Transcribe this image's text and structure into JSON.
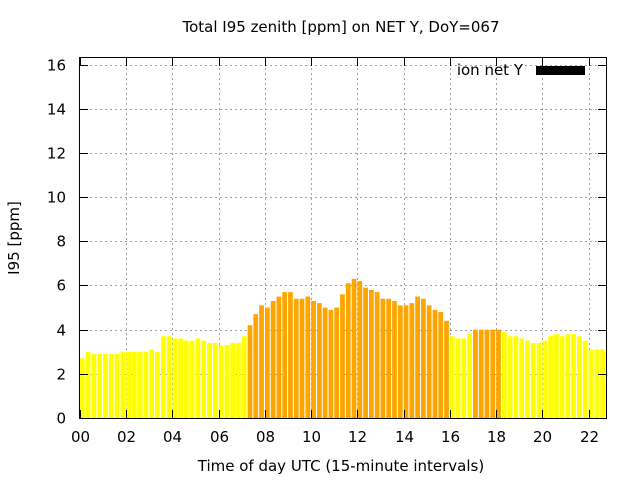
{
  "chart_data": {
    "type": "bar",
    "title": "Total I95 zenith [ppm] on NET Y, DoY=067",
    "xlabel": "Time of day UTC (15-minute intervals)",
    "ylabel": "I95 [ppm]",
    "ylim": [
      0,
      16.3
    ],
    "xlim": [
      0,
      22.75
    ],
    "yticks": [
      0,
      2,
      4,
      6,
      8,
      10,
      12,
      14,
      16
    ],
    "xticks": [
      0,
      2,
      4,
      6,
      8,
      10,
      12,
      14,
      16,
      18,
      20,
      22
    ],
    "xtick_labels": [
      "00",
      "02",
      "04",
      "06",
      "08",
      "10",
      "12",
      "14",
      "16",
      "18",
      "20",
      "22"
    ],
    "grid": true,
    "legend": {
      "label": "ion net Y",
      "placement": "top-right",
      "color": "#000000"
    },
    "colors": {
      "low": "#ffff00",
      "mid": "#ffa500",
      "high": "#ff0000"
    },
    "bar_interval_hours": 0.25,
    "series": [
      {
        "start_hour": 0,
        "values": [
          2.7,
          3.0,
          2.9,
          2.9,
          2.9,
          2.9,
          2.9,
          3.0,
          3.0,
          3.0,
          3.0,
          3.0,
          3.1,
          3.0,
          3.7,
          3.7,
          3.6,
          3.6,
          3.5,
          3.5,
          3.6,
          3.5,
          3.4,
          3.4,
          3.3,
          3.3,
          3.4,
          3.4,
          3.7,
          4.2,
          4.7,
          5.1,
          5.0,
          5.3,
          5.5,
          5.7,
          5.7,
          5.4,
          5.4,
          5.5,
          5.3,
          5.2,
          5.0,
          4.9,
          5.0,
          5.6,
          6.1,
          6.3,
          6.2,
          5.9,
          5.8,
          5.7,
          5.4,
          5.4,
          5.3,
          5.1,
          5.1,
          5.2,
          5.5,
          5.4,
          5.1,
          4.9,
          4.8,
          4.4,
          3.7,
          3.6,
          3.6,
          3.8,
          4.0,
          4.0,
          4.0,
          4.0,
          4.0,
          3.9,
          3.7,
          3.7,
          3.6,
          3.5,
          3.4,
          3.4,
          3.5,
          3.7,
          3.8,
          3.7,
          3.8,
          3.8,
          3.7,
          3.5,
          3.1,
          3.1,
          3.1,
          3.0
        ]
      }
    ]
  }
}
